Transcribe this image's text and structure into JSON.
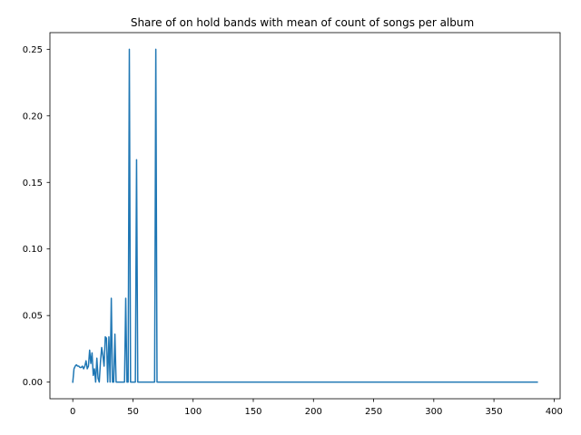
{
  "chart_data": {
    "type": "line",
    "title": "Share of on hold bands with mean of count of songs per album",
    "xlabel": "",
    "ylabel": "",
    "xlim": [
      -19,
      405
    ],
    "ylim": [
      -0.0125,
      0.2625
    ],
    "xticks": [
      0,
      50,
      100,
      150,
      200,
      250,
      300,
      350,
      400
    ],
    "xtick_labels": [
      "0",
      "50",
      "100",
      "150",
      "200",
      "250",
      "300",
      "350",
      "400"
    ],
    "yticks": [
      0.0,
      0.05,
      0.1,
      0.15,
      0.2,
      0.25
    ],
    "ytick_labels": [
      "0.00",
      "0.05",
      "0.10",
      "0.15",
      "0.20",
      "0.25"
    ],
    "grid": false,
    "legend": false,
    "series": [
      {
        "color": "#1f77b4",
        "x": [
          0,
          1,
          2,
          3,
          4,
          5,
          6,
          7,
          8,
          9,
          10,
          11,
          12,
          13,
          14,
          15,
          16,
          17,
          18,
          19,
          20,
          21,
          22,
          23,
          24,
          25,
          26,
          27,
          28,
          29,
          30,
          31,
          32,
          33,
          34,
          35,
          36,
          37,
          38,
          39,
          40,
          41,
          42,
          43,
          44,
          45,
          46,
          47,
          48,
          49,
          50,
          51,
          52,
          53,
          54,
          55,
          56,
          57,
          58,
          59,
          60,
          61,
          62,
          63,
          64,
          65,
          66,
          67,
          68,
          69,
          70,
          71,
          72,
          386
        ],
        "y": [
          0.0,
          0.01,
          0.012,
          0.013,
          0.012,
          0.012,
          0.011,
          0.011,
          0.012,
          0.01,
          0.012,
          0.016,
          0.01,
          0.012,
          0.024,
          0.014,
          0.022,
          0.005,
          0.01,
          0.0,
          0.018,
          0.003,
          0.0,
          0.015,
          0.026,
          0.02,
          0.012,
          0.034,
          0.033,
          0.0,
          0.034,
          0.0,
          0.063,
          0.0,
          0.0,
          0.036,
          0.0,
          0.0,
          0.0,
          0.0,
          0.0,
          0.0,
          0.0,
          0.0,
          0.063,
          0.0,
          0.0,
          0.25,
          0.0,
          0.0,
          0.0,
          0.0,
          0.0,
          0.167,
          0.0,
          0.0,
          0.0,
          0.0,
          0.0,
          0.0,
          0.0,
          0.0,
          0.0,
          0.0,
          0.0,
          0.0,
          0.0,
          0.0,
          0.0,
          0.25,
          0.0,
          0.0,
          0.0,
          0.0
        ]
      }
    ]
  }
}
